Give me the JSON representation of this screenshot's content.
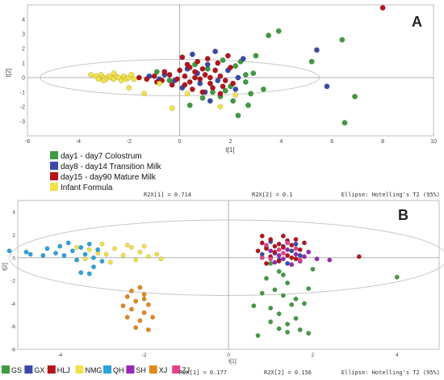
{
  "chart_data": [
    {
      "type": "scatter",
      "panel_label": "A",
      "xlabel": "t[1]",
      "ylabel": "t[2]",
      "xlim": [
        -6,
        10
      ],
      "ylim": [
        -4,
        5
      ],
      "xticks": [
        -6,
        -4,
        -2,
        0,
        2,
        4,
        6,
        8,
        10
      ],
      "yticks": [
        -3,
        -2,
        -1,
        0,
        1,
        2,
        3,
        4
      ],
      "ellipse_label": "",
      "legend_position": "below-left",
      "series": [
        {
          "name": "day1 - day7 Colostrum",
          "color": "#3f9b3f",
          "points": [
            [
              2.2,
              0.8
            ],
            [
              2.4,
              1.1
            ],
            [
              2.0,
              -0.6
            ],
            [
              1.8,
              -0.9
            ],
            [
              2.6,
              -0.3
            ],
            [
              2.9,
              0.3
            ],
            [
              1.6,
              -1.3
            ],
            [
              2.1,
              -1.6
            ],
            [
              3.0,
              1.5
            ],
            [
              3.5,
              2.9
            ],
            [
              3.9,
              3.2
            ],
            [
              3.3,
              -0.8
            ],
            [
              2.7,
              -1.9
            ],
            [
              2.3,
              -2.6
            ],
            [
              5.2,
              1.1
            ],
            [
              6.4,
              2.6
            ],
            [
              6.9,
              -1.3
            ],
            [
              6.5,
              -3.1
            ],
            [
              2.6,
              0.2
            ],
            [
              1.3,
              -1.0
            ],
            [
              0.9,
              -1.4
            ],
            [
              1.1,
              0.6
            ],
            [
              -0.4,
              -0.2
            ],
            [
              -0.9,
              0.4
            ],
            [
              0.4,
              -1.9
            ],
            [
              1.7,
              1.2
            ],
            [
              0.6,
              0.9
            ],
            [
              2.8,
              -1.1
            ]
          ]
        },
        {
          "name": "day8 - day14 Transition Milk",
          "color": "#3b4aa8",
          "points": [
            [
              -0.6,
              0.2
            ],
            [
              -0.2,
              -0.2
            ],
            [
              0.3,
              0.6
            ],
            [
              0.8,
              -0.4
            ],
            [
              1.1,
              0.9
            ],
            [
              1.5,
              -0.2
            ],
            [
              1.9,
              0.5
            ],
            [
              2.2,
              -0.8
            ],
            [
              2.5,
              1.3
            ],
            [
              0.5,
              1.6
            ],
            [
              1.0,
              -1.0
            ],
            [
              0.1,
              -0.7
            ],
            [
              -0.8,
              -0.1
            ],
            [
              1.4,
              1.8
            ],
            [
              0.7,
              0.3
            ],
            [
              5.4,
              1.9
            ],
            [
              5.8,
              -0.6
            ],
            [
              -1.2,
              0.1
            ],
            [
              2.3,
              0.0
            ],
            [
              1.2,
              -1.6
            ]
          ]
        },
        {
          "name": "day15 - day90 Mature Milk",
          "color": "#b3151b",
          "points": [
            [
              -1.3,
              -0.1
            ],
            [
              -1.0,
              0.1
            ],
            [
              -0.7,
              -0.2
            ],
            [
              -0.4,
              0.2
            ],
            [
              -0.1,
              -0.1
            ],
            [
              0.2,
              0.1
            ],
            [
              0.4,
              -0.3
            ],
            [
              0.6,
              0.4
            ],
            [
              0.8,
              -0.1
            ],
            [
              1.0,
              0.2
            ],
            [
              1.2,
              -0.4
            ],
            [
              1.4,
              0.5
            ],
            [
              1.6,
              0.1
            ],
            [
              1.8,
              -0.2
            ],
            [
              0.3,
              0.9
            ],
            [
              0.7,
              1.1
            ],
            [
              1.1,
              1.3
            ],
            [
              1.5,
              1.0
            ],
            [
              0.5,
              -0.8
            ],
            [
              0.9,
              -1.0
            ],
            [
              1.3,
              -0.7
            ],
            [
              1.7,
              -0.6
            ],
            [
              0.0,
              0.5
            ],
            [
              -0.3,
              -0.5
            ],
            [
              0.1,
              1.4
            ],
            [
              2.0,
              0.7
            ],
            [
              2.1,
              -0.4
            ],
            [
              1.9,
              1.5
            ],
            [
              -0.6,
              0.4
            ],
            [
              0.6,
              0.0
            ],
            [
              1.2,
              0.0
            ],
            [
              0.9,
              0.6
            ],
            [
              0.2,
              -0.5
            ],
            [
              1.6,
              -1.1
            ],
            [
              8.0,
              4.8
            ],
            [
              -1.6,
              0.0
            ],
            [
              -0.9,
              -0.3
            ],
            [
              0.4,
              0.7
            ]
          ]
        },
        {
          "name": "Infant Formula",
          "color": "#f2e24a",
          "points": [
            [
              -3.5,
              0.2
            ],
            [
              -3.3,
              0.1
            ],
            [
              -3.2,
              -0.1
            ],
            [
              -3.1,
              0.2
            ],
            [
              -3.0,
              0.0
            ],
            [
              -2.9,
              -0.1
            ],
            [
              -2.8,
              0.1
            ],
            [
              -2.7,
              0.0
            ],
            [
              -2.6,
              -0.1
            ],
            [
              -2.5,
              0.1
            ],
            [
              -2.4,
              0.0
            ],
            [
              -2.3,
              -0.2
            ],
            [
              -2.2,
              0.1
            ],
            [
              -2.1,
              -0.1
            ],
            [
              -2.0,
              0.0
            ],
            [
              -1.9,
              0.2
            ],
            [
              -1.8,
              -0.1
            ],
            [
              -2.0,
              -0.7
            ],
            [
              -1.4,
              -1.1
            ],
            [
              -0.8,
              -0.4
            ],
            [
              -0.3,
              -2.1
            ],
            [
              0.3,
              -1.1
            ],
            [
              1.6,
              -2.0
            ],
            [
              2.2,
              -1.2
            ],
            [
              -2.6,
              0.3
            ],
            [
              -3.0,
              -0.2
            ]
          ]
        }
      ]
    },
    {
      "type": "scatter",
      "panel_label": "B",
      "xlabel": "t[1]",
      "ylabel": "t[2]",
      "xlim": [
        -5,
        5
      ],
      "ylim": [
        -8,
        5
      ],
      "xticks": [
        -4,
        -2,
        0,
        2,
        4
      ],
      "yticks": [
        -8,
        -6,
        -4,
        -2,
        0,
        2,
        4
      ],
      "ellipse_label": "Ellipse: Hotelling's T2 (95%)",
      "r2x1": "R2X[1] = 0.177",
      "r2x2": "R2X[2] = 0.156",
      "legend_position": "bottom",
      "series": [
        {
          "name": "GS",
          "color": "#3f9b3f",
          "points": [
            [
              1.0,
              -0.5
            ],
            [
              1.2,
              -1.2
            ],
            [
              0.9,
              -1.8
            ],
            [
              1.4,
              -2.2
            ],
            [
              1.1,
              -2.8
            ],
            [
              1.3,
              -3.3
            ],
            [
              1.6,
              -3.6
            ],
            [
              0.8,
              -3.1
            ],
            [
              1.5,
              -4.1
            ],
            [
              1.0,
              -4.4
            ],
            [
              1.8,
              -4.0
            ],
            [
              1.2,
              -4.9
            ],
            [
              1.6,
              -5.3
            ],
            [
              1.4,
              -5.8
            ],
            [
              1.7,
              -6.3
            ],
            [
              1.4,
              -6.5
            ],
            [
              1.9,
              -6.6
            ],
            [
              1.2,
              -6.2
            ],
            [
              0.7,
              -6.8
            ],
            [
              1.0,
              -5.6
            ],
            [
              1.9,
              -2.7
            ],
            [
              4.0,
              -1.7
            ],
            [
              0.6,
              -4.2
            ],
            [
              1.3,
              -1.5
            ],
            [
              2.0,
              -1.0
            ]
          ]
        },
        {
          "name": "GX",
          "color": "#3b4aa8",
          "points": [
            [
              0.9,
              0.9
            ],
            [
              1.1,
              0.4
            ],
            [
              1.3,
              1.0
            ],
            [
              1.5,
              0.6
            ],
            [
              1.2,
              -0.2
            ],
            [
              1.7,
              0.2
            ],
            [
              1.0,
              1.4
            ],
            [
              1.6,
              1.2
            ],
            [
              0.8,
              0.3
            ],
            [
              1.4,
              -0.5
            ]
          ]
        },
        {
          "name": "HLJ",
          "color": "#b3151b",
          "points": [
            [
              0.8,
              1.3
            ],
            [
              1.0,
              1.6
            ],
            [
              1.2,
              1.2
            ],
            [
              1.4,
              1.5
            ],
            [
              0.9,
              0.8
            ],
            [
              1.1,
              0.5
            ],
            [
              1.3,
              0.9
            ],
            [
              1.5,
              1.1
            ],
            [
              1.7,
              0.7
            ],
            [
              1.0,
              0.1
            ],
            [
              1.2,
              -0.3
            ],
            [
              1.4,
              0.2
            ],
            [
              1.6,
              -0.1
            ],
            [
              0.7,
              0.6
            ],
            [
              1.8,
              1.3
            ],
            [
              0.9,
              -0.5
            ],
            [
              1.3,
              1.9
            ],
            [
              1.1,
              1.0
            ],
            [
              1.5,
              0.0
            ],
            [
              3.1,
              0.1
            ],
            [
              0.8,
              1.9
            ],
            [
              1.6,
              1.6
            ]
          ]
        },
        {
          "name": "NMG",
          "color": "#f2e24a",
          "points": [
            [
              -3.6,
              0.9
            ],
            [
              -3.3,
              0.7
            ],
            [
              -3.1,
              0.4
            ],
            [
              -2.9,
              0.3
            ],
            [
              -2.7,
              0.8
            ],
            [
              -2.5,
              0.2
            ],
            [
              -2.3,
              0.9
            ],
            [
              -2.1,
              0.5
            ],
            [
              -1.9,
              0.1
            ],
            [
              -1.7,
              0.3
            ],
            [
              -2.4,
              1.1
            ],
            [
              -2.0,
              1.0
            ],
            [
              -1.6,
              -0.1
            ],
            [
              -3.4,
              -0.1
            ],
            [
              -2.8,
              -0.4
            ],
            [
              -2.2,
              -0.2
            ],
            [
              -3.0,
              1.2
            ]
          ]
        },
        {
          "name": "QH",
          "color": "#29a3dc",
          "points": [
            [
              -5.2,
              0.6
            ],
            [
              -4.8,
              0.5
            ],
            [
              -4.3,
              0.8
            ],
            [
              -4.1,
              0.4
            ],
            [
              -4.0,
              1.0
            ],
            [
              -3.9,
              0.2
            ],
            [
              -3.7,
              0.6
            ],
            [
              -3.5,
              0.9
            ],
            [
              -3.4,
              0.3
            ],
            [
              -3.3,
              1.2
            ],
            [
              -3.6,
              -0.2
            ],
            [
              -3.2,
              0.0
            ],
            [
              -3.1,
              0.7
            ],
            [
              -3.0,
              -0.3
            ],
            [
              -3.2,
              -0.8
            ],
            [
              -4.4,
              0.2
            ],
            [
              -3.5,
              -1.3
            ],
            [
              -3.3,
              -1.4
            ],
            [
              -4.7,
              0.3
            ],
            [
              -3.8,
              1.3
            ]
          ]
        },
        {
          "name": "SH",
          "color": "#9a28b4",
          "points": [
            [
              1.0,
              0.6
            ],
            [
              1.2,
              0.2
            ],
            [
              1.4,
              0.7
            ],
            [
              1.6,
              0.3
            ],
            [
              1.3,
              -0.1
            ],
            [
              1.1,
              -0.4
            ],
            [
              1.8,
              0.1
            ],
            [
              2.1,
              -0.1
            ],
            [
              1.5,
              -0.6
            ],
            [
              1.9,
              0.5
            ],
            [
              1.7,
              -0.3
            ],
            [
              2.4,
              -0.2
            ]
          ]
        },
        {
          "name": "XJ",
          "color": "#e1891c",
          "points": [
            [
              -2.1,
              -2.6
            ],
            [
              -2.3,
              -2.9
            ],
            [
              -2.0,
              -3.2
            ],
            [
              -2.4,
              -3.4
            ],
            [
              -2.2,
              -3.8
            ],
            [
              -1.9,
              -4.1
            ],
            [
              -2.3,
              -4.5
            ],
            [
              -2.0,
              -4.8
            ],
            [
              -2.4,
              -5.2
            ],
            [
              -2.1,
              -5.5
            ],
            [
              -1.8,
              -5.2
            ],
            [
              -2.5,
              -4.2
            ],
            [
              -2.2,
              -6.1
            ],
            [
              -1.9,
              -6.3
            ],
            [
              -2.0,
              -3.6
            ]
          ]
        },
        {
          "name": "ZJ",
          "color": "#e83f8c",
          "points": [
            [
              0.9,
              1.1
            ],
            [
              1.2,
              0.7
            ],
            [
              1.4,
              1.3
            ],
            [
              1.0,
              -0.1
            ],
            [
              1.6,
              0.8
            ],
            [
              1.3,
              0.4
            ],
            [
              1.7,
              -0.2
            ],
            [
              0.8,
              0.0
            ]
          ]
        }
      ]
    }
  ],
  "top_stats": {
    "r2x1": "R2X[1] = 0.714",
    "r2x2": "R2X[2] = 0.1",
    "ellipse": "Ellipse: Hotelling's T2 (95%)"
  }
}
